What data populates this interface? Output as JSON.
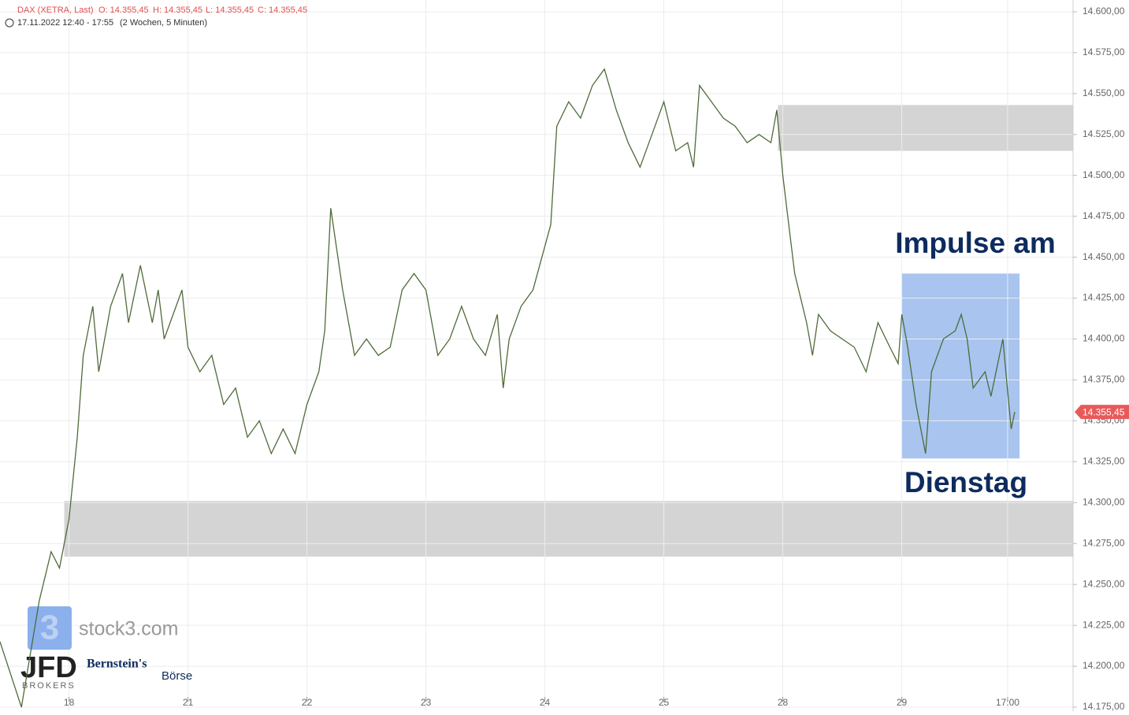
{
  "chart_data": {
    "type": "line",
    "header": {
      "symbol": "DAX (XETRA, Last)",
      "open": "O: 14.355,45",
      "high": "H: 14.355,45",
      "low": "L: 14.355,45",
      "close": "C: 14.355,45",
      "range": "17.11.2022 12:40 - 17:55",
      "period": "(2 Wochen, 5 Minuten)"
    },
    "annotations": [
      "Impulse am",
      "Dienstag"
    ],
    "logos": [
      "3",
      "stock3.com",
      "JFD",
      "BROKERS",
      "Bernstein's",
      "Börse"
    ],
    "x": [
      -0.58,
      -0.4,
      -0.25,
      -0.15,
      -0.08,
      0,
      0.07,
      0.12,
      0.2,
      0.25,
      0.35,
      0.45,
      0.5,
      0.6,
      0.7,
      0.75,
      0.8,
      0.9,
      0.95,
      1.0,
      1.1,
      1.2,
      1.3,
      1.4,
      1.5,
      1.6,
      1.7,
      1.8,
      1.9,
      2.0,
      2.1,
      2.15,
      2.2,
      2.3,
      2.4,
      2.5,
      2.6,
      2.7,
      2.8,
      2.9,
      3.0,
      3.1,
      3.2,
      3.3,
      3.4,
      3.5,
      3.6,
      3.65,
      3.7,
      3.8,
      3.9,
      4.05,
      4.1,
      4.2,
      4.3,
      4.4,
      4.5,
      4.6,
      4.7,
      4.8,
      4.9,
      5.0,
      5.1,
      5.2,
      5.25,
      5.3,
      5.4,
      5.5,
      5.6,
      5.7,
      5.8,
      5.9,
      5.95,
      6.0,
      6.05,
      6.1,
      6.2,
      6.25,
      6.3,
      6.4,
      6.5,
      6.6,
      6.7,
      6.8,
      6.9,
      6.97,
      7.0,
      7.05,
      7.12,
      7.2,
      7.25,
      7.35,
      7.45,
      7.5,
      7.55,
      7.6,
      7.7,
      7.75,
      7.85,
      7.9,
      7.92,
      7.95
    ],
    "series": [
      {
        "color": "#4e6b3a",
        "values": [
          14215,
          14175,
          14240,
          14270,
          14260,
          14290,
          14340,
          14390,
          14420,
          14380,
          14420,
          14440,
          14410,
          14445,
          14410,
          14430,
          14400,
          14420,
          14430,
          14395,
          14380,
          14390,
          14360,
          14370,
          14340,
          14350,
          14330,
          14345,
          14330,
          14360,
          14380,
          14405,
          14480,
          14430,
          14390,
          14400,
          14390,
          14395,
          14430,
          14440,
          14430,
          14390,
          14400,
          14420,
          14400,
          14390,
          14415,
          14370,
          14400,
          14420,
          14430,
          14470,
          14530,
          14545,
          14535,
          14555,
          14565,
          14540,
          14520,
          14505,
          14525,
          14545,
          14515,
          14520,
          14505,
          14555,
          14545,
          14535,
          14530,
          14520,
          14525,
          14520,
          14540,
          14500,
          14470,
          14440,
          14410,
          14390,
          14415,
          14405,
          14400,
          14395,
          14380,
          14410,
          14395,
          14385,
          14415,
          14395,
          14360,
          14330,
          14380,
          14400,
          14405,
          14415,
          14400,
          14370,
          14380,
          14365,
          14400,
          14360,
          14345,
          14355.45
        ]
      }
    ],
    "zones": [
      {
        "color": "#d4d4d4",
        "x": [
          5.96,
          8.44
        ],
        "y": [
          14515,
          14543
        ]
      },
      {
        "color": "#d4d4d4",
        "x": [
          -0.04,
          8.44
        ],
        "y": [
          14267,
          14301
        ]
      },
      {
        "color": "#a8c4ef",
        "x": [
          7.0,
          7.99
        ],
        "y": [
          14327,
          14440
        ]
      }
    ],
    "last": {
      "value": 14355.45,
      "label": "14.355,45"
    },
    "xlim": [
      -0.58,
      8.44
    ],
    "ylim": [
      14172.6,
      14607.2
    ],
    "xticks": [
      {
        "value": 0,
        "label": "18"
      },
      {
        "value": 1,
        "label": "21"
      },
      {
        "value": 2,
        "label": "22"
      },
      {
        "value": 3,
        "label": "23"
      },
      {
        "value": 4,
        "label": "24"
      },
      {
        "value": 5,
        "label": "25"
      },
      {
        "value": 6,
        "label": "28"
      },
      {
        "value": 7,
        "label": "29"
      },
      {
        "value": 7.89,
        "label": "17:00"
      }
    ],
    "yticks": [
      {
        "value": 14175,
        "label": "14.175,00"
      },
      {
        "value": 14200,
        "label": "14.200,00"
      },
      {
        "value": 14225,
        "label": "14.225,00"
      },
      {
        "value": 14250,
        "label": "14.250,00"
      },
      {
        "value": 14275,
        "label": "14.275,00"
      },
      {
        "value": 14300,
        "label": "14.300,00"
      },
      {
        "value": 14325,
        "label": "14.325,00"
      },
      {
        "value": 14350,
        "label": "14.350,00"
      },
      {
        "value": 14375,
        "label": "14.375,00"
      },
      {
        "value": 14400,
        "label": "14.400,00"
      },
      {
        "value": 14425,
        "label": "14.425,00"
      },
      {
        "value": 14450,
        "label": "14.450,00"
      },
      {
        "value": 14475,
        "label": "14.475,00"
      },
      {
        "value": 14500,
        "label": "14.500,00"
      },
      {
        "value": 14525,
        "label": "14.525,00"
      },
      {
        "value": 14550,
        "label": "14.550,00"
      },
      {
        "value": 14575,
        "label": "14.575,00"
      },
      {
        "value": 14600,
        "label": "14.600,00"
      }
    ],
    "grid": true
  }
}
